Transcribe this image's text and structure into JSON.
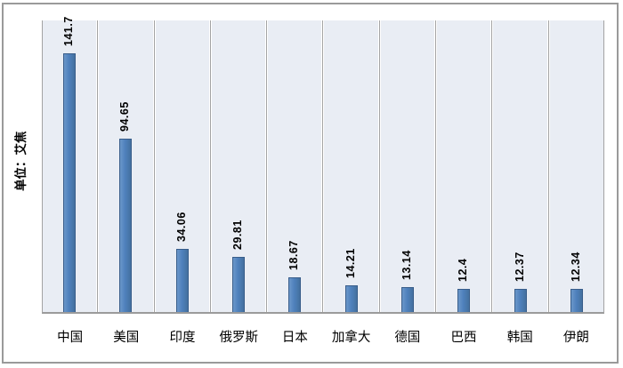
{
  "chart_data": {
    "type": "bar",
    "title": "",
    "xlabel": "",
    "ylabel": "单位：艾焦",
    "ylim": [
      0,
      160
    ],
    "grid": "vertical-category-separators",
    "legend": "none",
    "categories": [
      "中国",
      "美国",
      "印度",
      "俄罗斯",
      "日本",
      "加拿大",
      "德国",
      "巴西",
      "韩国",
      "伊朗"
    ],
    "values": [
      141.7,
      94.65,
      34.06,
      29.81,
      18.67,
      14.21,
      13.14,
      12.4,
      12.37,
      12.34
    ],
    "value_labels": [
      "141.7",
      "94.65",
      "34.06",
      "29.81",
      "18.67",
      "14.21",
      "13.14",
      "12.4",
      "12.37",
      "12.34"
    ]
  },
  "colors": {
    "bar_fill": "#4f81bd",
    "bar_border": "#385d8a",
    "band_background": "#e9edf4",
    "separator_line": "#a3a3a3",
    "axis_line": "#9b9b9b",
    "frame_border": "#9a9a9a",
    "label_text": "#000000"
  }
}
